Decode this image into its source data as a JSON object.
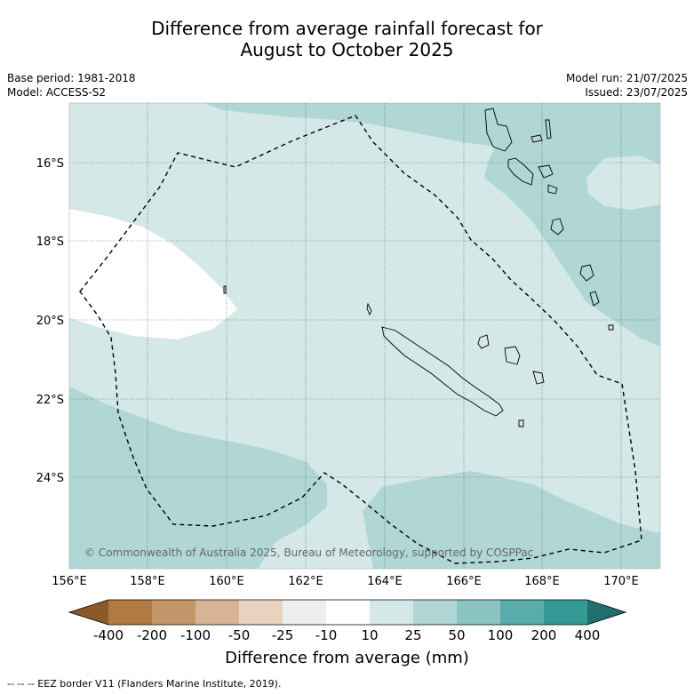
{
  "title_line1": "Difference from average rainfall forecast for",
  "title_line2": "August to October 2025",
  "meta_left": {
    "base_period": "Base period: 1981-2018",
    "model": "Model: ACCESS-S2"
  },
  "meta_right": {
    "model_run": "Model run: 21/07/2025",
    "issued": "Issued: 23/07/2025"
  },
  "map": {
    "lat_labels": [
      "16°S",
      "18°S",
      "20°S",
      "22°S",
      "24°S"
    ],
    "lon_labels": [
      "156°E",
      "158°E",
      "160°E",
      "162°E",
      "164°E",
      "166°E",
      "168°E",
      "170°E"
    ],
    "copyright": "© Commonwealth of Australia 2025, Bureau of Meteorology, supported by COSPPac"
  },
  "colorbar": {
    "tick_labels": [
      "-400",
      "-200",
      "-100",
      "-50",
      "-25",
      "-10",
      "10",
      "25",
      "50",
      "100",
      "200",
      "400"
    ],
    "title": "Difference from average (mm)",
    "colors": [
      "#8c5a2a",
      "#b07a45",
      "#c5966a",
      "#d7b497",
      "#e8d3bf",
      "#eeeeee",
      "#ffffff",
      "#d4e8e8",
      "#b0d6d6",
      "#8cc4c4",
      "#5aacac",
      "#349a96",
      "#20706e"
    ]
  },
  "footnote": "--  --  -- EEZ border V11 (Flanders Marine Institute, 2019)."
}
